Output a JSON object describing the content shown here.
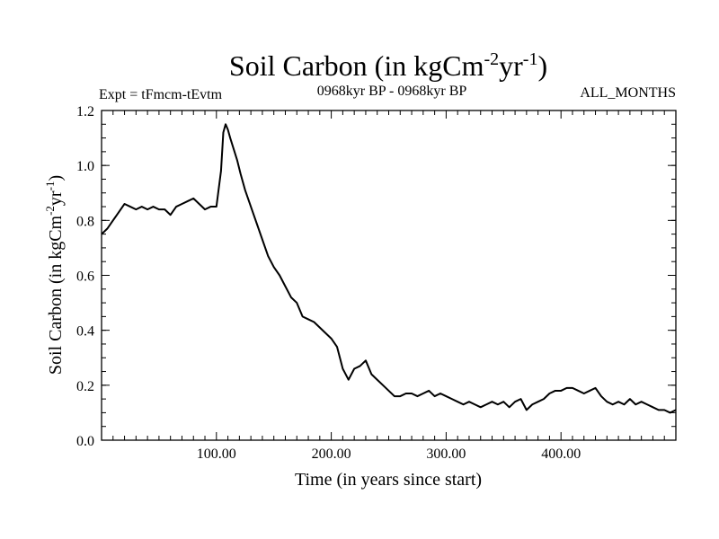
{
  "chart_data": {
    "type": "line",
    "title": "Soil Carbon (in kgCm",
    "title_sup1": "-2",
    "title_mid": "yr",
    "title_sup2": "-1",
    "title_end": ")",
    "subtitle_left": "Expt = tFmcm-tEvtm",
    "subtitle_center": "0968kyr BP - 0968kyr BP",
    "subtitle_right": "ALL_MONTHS",
    "xlabel": "Time (in years since start)",
    "ylabel": "Soil Carbon (in kgCm",
    "ylabel_sup1": "-2",
    "ylabel_mid": "yr",
    "ylabel_sup2": "-1",
    "ylabel_end": ")",
    "xlim": [
      0,
      500
    ],
    "ylim": [
      0.0,
      1.2
    ],
    "x_ticks": [
      100,
      200,
      300,
      400
    ],
    "x_tick_labels": [
      "100.00",
      "200.00",
      "300.00",
      "400.00"
    ],
    "y_ticks": [
      0.0,
      0.2,
      0.4,
      0.6,
      0.8,
      1.0,
      1.2
    ],
    "y_tick_labels": [
      "0.0",
      "0.2",
      "0.4",
      "0.6",
      "0.8",
      "1.0",
      "1.2"
    ],
    "series": [
      {
        "name": "Soil Carbon",
        "color": "#000000",
        "x": [
          0,
          5,
          10,
          15,
          20,
          25,
          30,
          35,
          40,
          45,
          50,
          55,
          60,
          65,
          70,
          75,
          80,
          85,
          90,
          95,
          100,
          104,
          106,
          108,
          110,
          112,
          115,
          118,
          121,
          125,
          130,
          135,
          140,
          145,
          150,
          155,
          160,
          165,
          170,
          175,
          180,
          185,
          190,
          195,
          200,
          205,
          210,
          215,
          220,
          225,
          230,
          235,
          240,
          245,
          250,
          255,
          260,
          265,
          270,
          275,
          280,
          285,
          290,
          295,
          300,
          305,
          310,
          315,
          320,
          325,
          330,
          335,
          340,
          345,
          350,
          355,
          360,
          365,
          370,
          375,
          380,
          385,
          390,
          395,
          400,
          405,
          410,
          415,
          420,
          425,
          430,
          435,
          440,
          445,
          450,
          455,
          460,
          465,
          470,
          475,
          480,
          485,
          490,
          495,
          500
        ],
        "y": [
          0.75,
          0.77,
          0.8,
          0.83,
          0.86,
          0.85,
          0.84,
          0.85,
          0.84,
          0.85,
          0.84,
          0.84,
          0.82,
          0.85,
          0.86,
          0.87,
          0.88,
          0.86,
          0.84,
          0.85,
          0.85,
          0.98,
          1.12,
          1.15,
          1.13,
          1.1,
          1.06,
          1.02,
          0.97,
          0.91,
          0.85,
          0.79,
          0.73,
          0.67,
          0.63,
          0.6,
          0.56,
          0.52,
          0.5,
          0.45,
          0.44,
          0.43,
          0.41,
          0.39,
          0.37,
          0.34,
          0.26,
          0.22,
          0.26,
          0.27,
          0.29,
          0.24,
          0.22,
          0.2,
          0.18,
          0.16,
          0.16,
          0.17,
          0.17,
          0.16,
          0.17,
          0.18,
          0.16,
          0.17,
          0.16,
          0.15,
          0.14,
          0.13,
          0.14,
          0.13,
          0.12,
          0.13,
          0.14,
          0.13,
          0.14,
          0.12,
          0.14,
          0.15,
          0.11,
          0.13,
          0.14,
          0.15,
          0.17,
          0.18,
          0.18,
          0.19,
          0.19,
          0.18,
          0.17,
          0.18,
          0.19,
          0.16,
          0.14,
          0.13,
          0.14,
          0.13,
          0.15,
          0.13,
          0.14,
          0.13,
          0.12,
          0.11,
          0.11,
          0.1,
          0.11
        ]
      }
    ]
  }
}
